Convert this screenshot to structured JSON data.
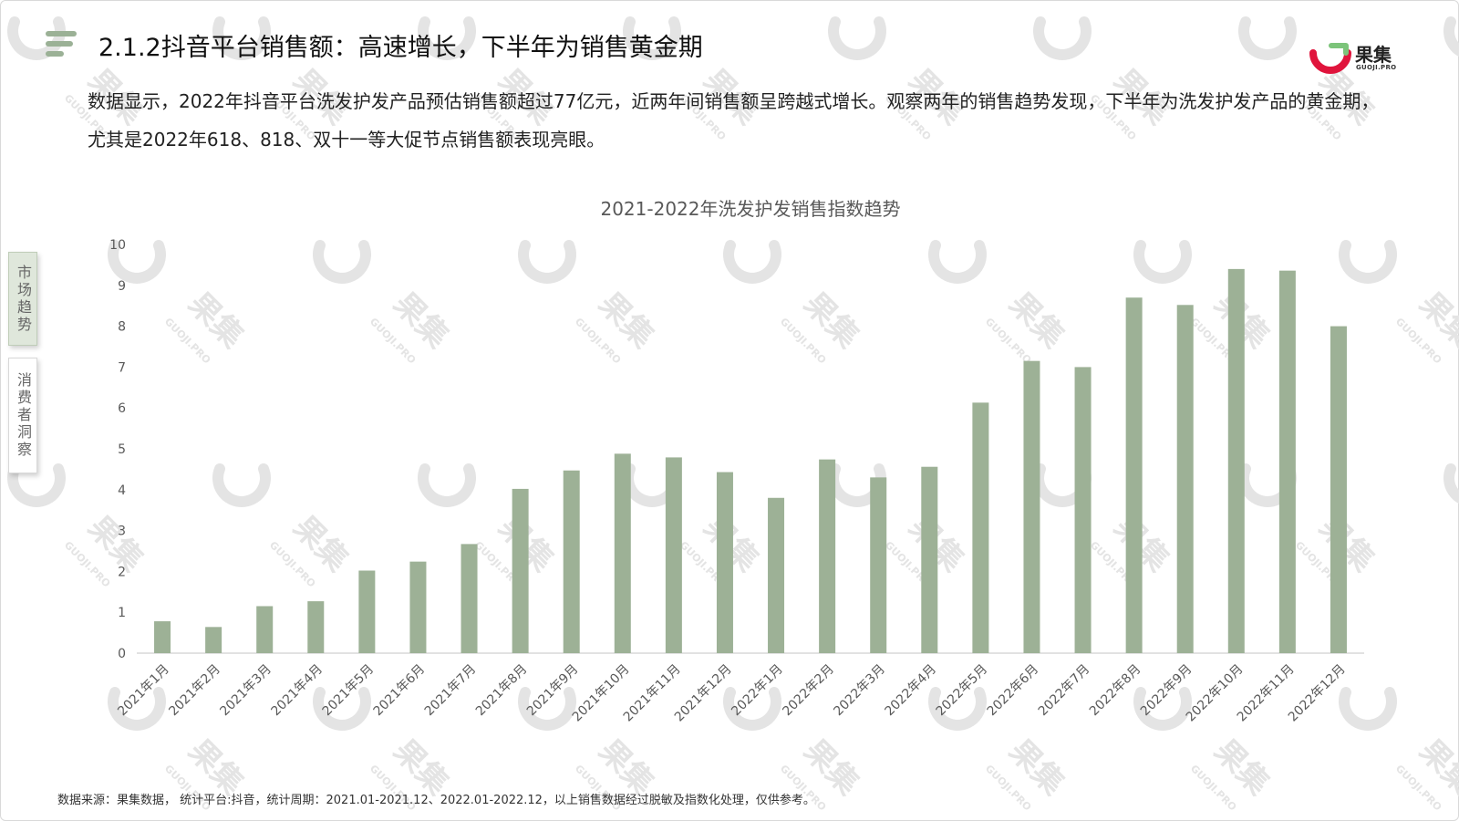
{
  "header": {
    "title": "2.1.2抖音平台销售额：高速增长，下半年为销售黄金期"
  },
  "logo": {
    "name": "果集",
    "sub": "GUOJI.PRO"
  },
  "intro": {
    "text": "数据显示，2022年抖音平台洗发护发产品预估销售额超过77亿元，近两年间销售额呈跨越式增长。观察两年的销售趋势发现，下半年为洗发护发产品的黄金期，尤其是2022年618、818、双十一等大促节点销售额表现亮眼。"
  },
  "side_tabs": [
    {
      "label": "市场趋势",
      "active": true
    },
    {
      "label": "消费者洞察",
      "active": false
    }
  ],
  "watermark": {
    "text": "果集",
    "sub": "GUOJI.PRO"
  },
  "colors": {
    "bar": "#9db196",
    "accent": "#9bb196",
    "logo_red": "#e0143c",
    "logo_green": "#7cc47a",
    "watermark": "#e4e4e4"
  },
  "chart_data": {
    "type": "bar",
    "title": "2021-2022年洗发护发销售指数趋势",
    "xlabel": "",
    "ylabel": "",
    "ylim": [
      0,
      10
    ],
    "yticks": [
      0,
      1,
      2,
      3,
      4,
      5,
      6,
      7,
      8,
      9,
      10
    ],
    "grid": false,
    "categories": [
      "2021年1月",
      "2021年2月",
      "2021年3月",
      "2021年4月",
      "2021年5月",
      "2021年6月",
      "2021年7月",
      "2021年8月",
      "2021年9月",
      "2021年10月",
      "2021年11月",
      "2021年12月",
      "2022年1月",
      "2022年2月",
      "2022年3月",
      "2022年4月",
      "2022年5月",
      "2022年6月",
      "2022年7月",
      "2022年8月",
      "2022年9月",
      "2022年10月",
      "2022年11月",
      "2022年12月"
    ],
    "values": [
      0.78,
      0.64,
      1.15,
      1.27,
      2.02,
      2.24,
      2.67,
      4.02,
      4.47,
      4.88,
      4.79,
      4.43,
      3.8,
      4.74,
      4.3,
      4.56,
      6.13,
      7.15,
      7.0,
      8.7,
      8.52,
      9.4,
      9.36,
      8.0
    ]
  },
  "footer": {
    "source": "数据来源：果集数据， 统计平台:抖音，统计周期：2021.01-2021.12、2022.01-2022.12，以上销售数据经过脱敏及指数化处理，仅供参考。"
  }
}
